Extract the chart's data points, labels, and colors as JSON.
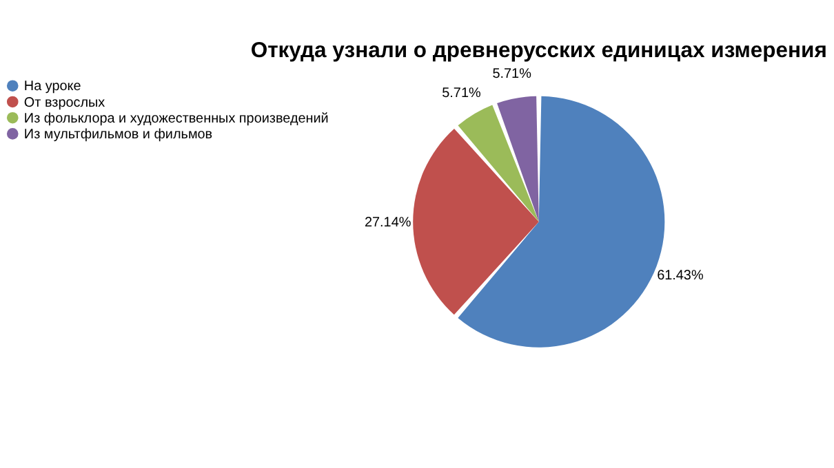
{
  "chart_data": {
    "type": "pie",
    "title": "Откуда узнали о древнерусских единицах измерения",
    "categories": [
      "На уроке",
      "От взрослых",
      "Из фольклора и художественных произведений",
      "Из мультфильмов и фильмов"
    ],
    "values": [
      61.43,
      27.14,
      5.71,
      5.71
    ],
    "colors": [
      "#4f81bd",
      "#c0504d",
      "#9bbb59",
      "#8064a2"
    ],
    "value_labels": [
      "61.43%",
      "27.14%",
      "5.71%",
      "5.71%"
    ],
    "legend": "left"
  }
}
